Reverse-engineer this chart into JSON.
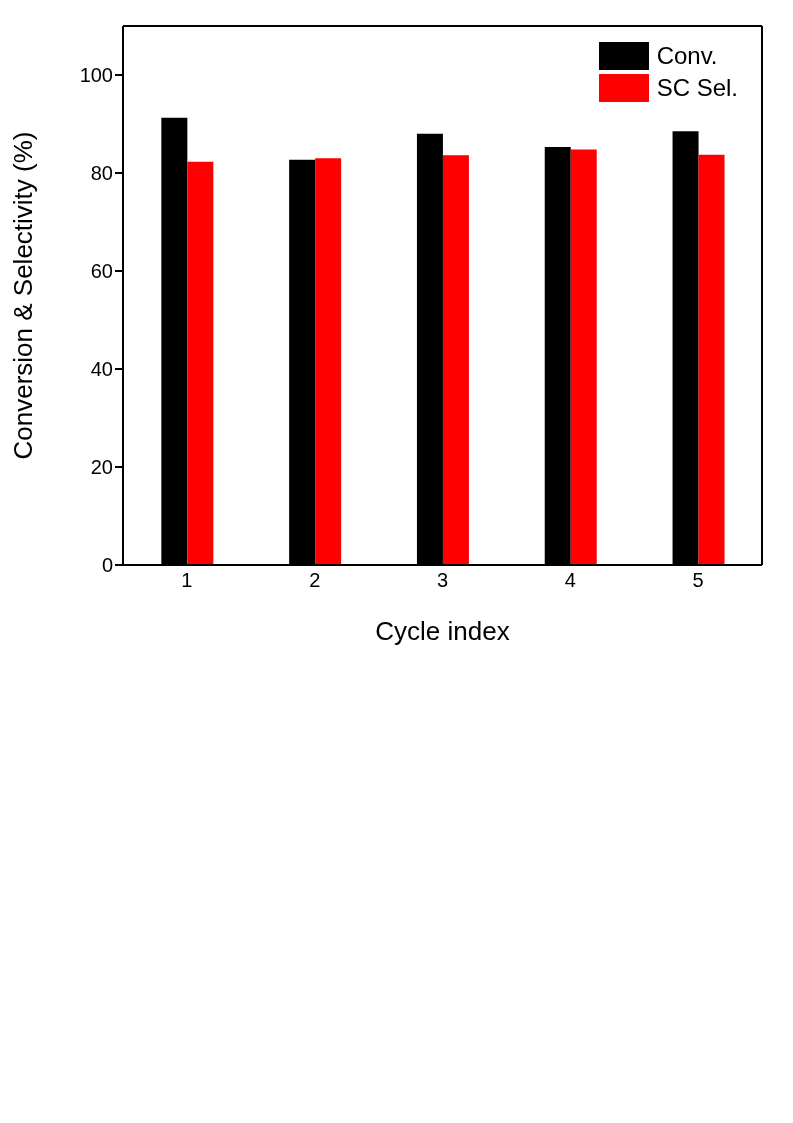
{
  "chart_data": {
    "type": "bar",
    "xlabel": "Cycle index",
    "ylabel": "Conversion & Selectivity (%)",
    "categories": [
      "1",
      "2",
      "3",
      "4",
      "5"
    ],
    "series": [
      {
        "name": "Conv.",
        "color": "#000000",
        "values": [
          91.3,
          82.7,
          88.0,
          85.3,
          88.5
        ]
      },
      {
        "name": "SC Sel.",
        "color": "#ff0000",
        "values": [
          82.3,
          83.0,
          83.6,
          84.8,
          83.7
        ]
      }
    ],
    "ylim": [
      0,
      110
    ],
    "yticks": [
      0,
      20,
      40,
      60,
      80,
      100
    ],
    "grid": false,
    "legend": "top right"
  }
}
